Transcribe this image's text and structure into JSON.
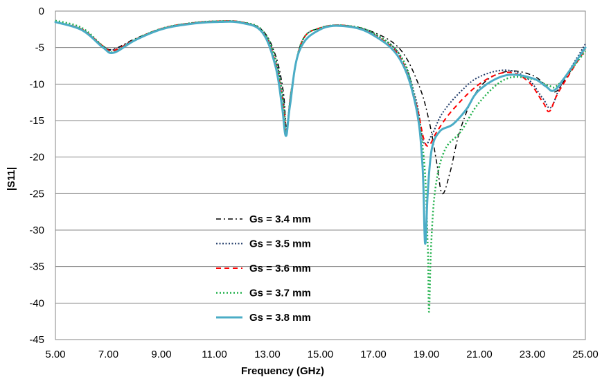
{
  "chart_data": {
    "type": "line",
    "xlabel": "Frequency (GHz)",
    "ylabel": "|S11|",
    "xlim": [
      5,
      25
    ],
    "ylim": [
      -45,
      0
    ],
    "x_ticks": [
      "5.00",
      "7.00",
      "9.00",
      "11.00",
      "13.00",
      "15.00",
      "17.00",
      "19.00",
      "21.00",
      "23.00",
      "25.00"
    ],
    "y_ticks": [
      "0",
      "-5",
      "-10",
      "-15",
      "-20",
      "-25",
      "-30",
      "-35",
      "-40",
      "-45"
    ],
    "grid": "horizontal",
    "legend_position": "lower-center",
    "series": [
      {
        "name": "Gs = 3.4 mm",
        "color": "#000000",
        "dash": "dashdot",
        "width": 1.5,
        "points": [
          [
            5,
            -1.5
          ],
          [
            6,
            -2.5
          ],
          [
            6.8,
            -4.8
          ],
          [
            7.2,
            -5.2
          ],
          [
            8,
            -3.8
          ],
          [
            9,
            -2.4
          ],
          [
            10,
            -1.7
          ],
          [
            11,
            -1.4
          ],
          [
            12,
            -1.5
          ],
          [
            12.8,
            -2.6
          ],
          [
            13.3,
            -6
          ],
          [
            13.6,
            -11
          ],
          [
            13.72,
            -15.8
          ],
          [
            13.9,
            -11
          ],
          [
            14.3,
            -4.2
          ],
          [
            15,
            -2.3
          ],
          [
            16,
            -2.0
          ],
          [
            17,
            -2.9
          ],
          [
            18,
            -5.2
          ],
          [
            18.7,
            -10
          ],
          [
            19.1,
            -15
          ],
          [
            19.4,
            -21
          ],
          [
            19.6,
            -25
          ],
          [
            19.9,
            -22
          ],
          [
            20.3,
            -16
          ],
          [
            21,
            -10.5
          ],
          [
            22,
            -8.3
          ],
          [
            23,
            -8.8
          ],
          [
            23.6,
            -10.5
          ],
          [
            23.9,
            -11
          ],
          [
            24.3,
            -9
          ],
          [
            25,
            -5
          ]
        ]
      },
      {
        "name": "Gs = 3.5 mm",
        "color": "#1f3a68",
        "dash": "dotted",
        "width": 2,
        "points": [
          [
            5,
            -1.5
          ],
          [
            6,
            -2.5
          ],
          [
            6.8,
            -4.8
          ],
          [
            7.2,
            -5.3
          ],
          [
            8,
            -3.9
          ],
          [
            9,
            -2.4
          ],
          [
            10,
            -1.7
          ],
          [
            11,
            -1.4
          ],
          [
            12,
            -1.5
          ],
          [
            12.8,
            -2.7
          ],
          [
            13.3,
            -6.5
          ],
          [
            13.6,
            -12
          ],
          [
            13.72,
            -16.3
          ],
          [
            13.9,
            -11
          ],
          [
            14.3,
            -4.2
          ],
          [
            15,
            -2.3
          ],
          [
            16,
            -2.0
          ],
          [
            17,
            -3.1
          ],
          [
            18,
            -6
          ],
          [
            18.6,
            -12
          ],
          [
            18.9,
            -18
          ],
          [
            19.2,
            -17
          ],
          [
            19.6,
            -14
          ],
          [
            20.3,
            -11
          ],
          [
            21,
            -9
          ],
          [
            22,
            -8.1
          ],
          [
            22.8,
            -9.2
          ],
          [
            23.4,
            -12
          ],
          [
            23.7,
            -13.2
          ],
          [
            24.1,
            -10
          ],
          [
            25,
            -4.5
          ]
        ]
      },
      {
        "name": "Gs = 3.6 mm",
        "color": "#ff0000",
        "dash": "dashed",
        "width": 2,
        "points": [
          [
            5,
            -1.5
          ],
          [
            6,
            -2.5
          ],
          [
            6.8,
            -4.8
          ],
          [
            7.2,
            -5.4
          ],
          [
            8,
            -3.9
          ],
          [
            9,
            -2.4
          ],
          [
            10,
            -1.7
          ],
          [
            11,
            -1.4
          ],
          [
            12,
            -1.5
          ],
          [
            12.8,
            -2.8
          ],
          [
            13.3,
            -7
          ],
          [
            13.6,
            -13
          ],
          [
            13.72,
            -16.5
          ],
          [
            13.9,
            -11
          ],
          [
            14.3,
            -4.2
          ],
          [
            15,
            -2.3
          ],
          [
            16,
            -2.0
          ],
          [
            17,
            -3.2
          ],
          [
            18,
            -6.3
          ],
          [
            18.6,
            -12.5
          ],
          [
            18.9,
            -17.5
          ],
          [
            19.1,
            -18.4
          ],
          [
            19.4,
            -16.5
          ],
          [
            20,
            -13.5
          ],
          [
            21,
            -10
          ],
          [
            22,
            -8.4
          ],
          [
            22.8,
            -9.5
          ],
          [
            23.4,
            -12.5
          ],
          [
            23.65,
            -13.7
          ],
          [
            24,
            -11
          ],
          [
            25,
            -5.2
          ]
        ]
      },
      {
        "name": "Gs =  3.7 mm",
        "color": "#22b14c",
        "dash": "dotted",
        "width": 2.5,
        "points": [
          [
            5,
            -1.3
          ],
          [
            6,
            -2.3
          ],
          [
            6.8,
            -4.8
          ],
          [
            7.2,
            -5.6
          ],
          [
            8,
            -3.9
          ],
          [
            9,
            -2.4
          ],
          [
            10,
            -1.7
          ],
          [
            11,
            -1.4
          ],
          [
            12,
            -1.5
          ],
          [
            12.8,
            -2.6
          ],
          [
            13.3,
            -6.5
          ],
          [
            13.6,
            -12.5
          ],
          [
            13.72,
            -16.8
          ],
          [
            13.9,
            -11
          ],
          [
            14.3,
            -4.2
          ],
          [
            15,
            -2.3
          ],
          [
            16,
            -2.0
          ],
          [
            17,
            -3.0
          ],
          [
            18,
            -6
          ],
          [
            18.5,
            -11
          ],
          [
            18.9,
            -20
          ],
          [
            19.05,
            -32
          ],
          [
            19.1,
            -41.2
          ],
          [
            19.18,
            -32
          ],
          [
            19.35,
            -24
          ],
          [
            19.7,
            -19
          ],
          [
            20.3,
            -16.5
          ],
          [
            21,
            -12.5
          ],
          [
            22,
            -9.3
          ],
          [
            23,
            -9.3
          ],
          [
            23.6,
            -10.2
          ],
          [
            24,
            -10
          ],
          [
            25,
            -5.5
          ]
        ]
      },
      {
        "name": "Gs =  3.8 mm",
        "color": "#4bacc6",
        "dash": "solid",
        "width": 3,
        "points": [
          [
            5,
            -1.5
          ],
          [
            6,
            -2.6
          ],
          [
            6.8,
            -5
          ],
          [
            7.2,
            -5.7
          ],
          [
            8,
            -4
          ],
          [
            9,
            -2.5
          ],
          [
            10,
            -1.8
          ],
          [
            11,
            -1.5
          ],
          [
            12,
            -1.6
          ],
          [
            12.8,
            -2.9
          ],
          [
            13.3,
            -7.5
          ],
          [
            13.55,
            -13
          ],
          [
            13.7,
            -17.1
          ],
          [
            13.85,
            -13
          ],
          [
            14.2,
            -5.5
          ],
          [
            15,
            -2.5
          ],
          [
            16,
            -2.1
          ],
          [
            17,
            -3.3
          ],
          [
            18,
            -6.6
          ],
          [
            18.6,
            -13
          ],
          [
            18.85,
            -21
          ],
          [
            18.95,
            -31.8
          ],
          [
            19.05,
            -25
          ],
          [
            19.2,
            -19
          ],
          [
            19.5,
            -16.5
          ],
          [
            20,
            -15.5
          ],
          [
            20.5,
            -13.5
          ],
          [
            21,
            -10.8
          ],
          [
            22,
            -8.8
          ],
          [
            23,
            -9.2
          ],
          [
            23.5,
            -10.3
          ],
          [
            23.8,
            -10.9
          ],
          [
            24.2,
            -9.2
          ],
          [
            25,
            -5
          ]
        ]
      }
    ]
  }
}
